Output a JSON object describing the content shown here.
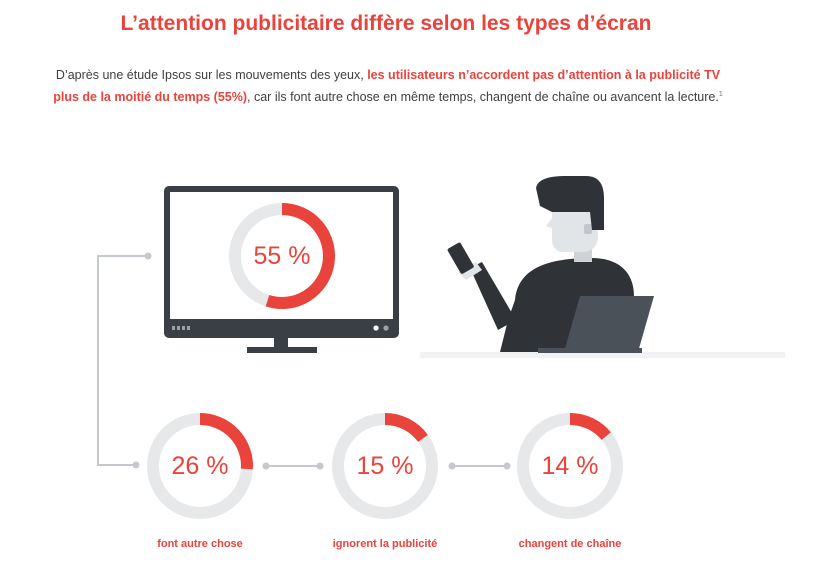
{
  "title": "L’attention publicitaire diffère selon les types d’écran",
  "intro": {
    "part1": "D’après une étude Ipsos sur les mouvements des yeux, ",
    "highlight": "les utilisateurs n’accordent pas d’attention à la publicité TV plus de la moitié du temps (55%)",
    "part2": ", car ils font autre chose en même temps, changent de chaîne ou avancent la lecture.",
    "footnote": "1"
  },
  "colors": {
    "accent": "#e9433b",
    "ring_track": "#e6e8ea",
    "dark": "#2f3338",
    "slate": "#4b5158"
  },
  "main_stat": {
    "label": "55 %",
    "fraction": 0.55
  },
  "stats": [
    {
      "label": "26 %",
      "fraction": 0.26,
      "caption": "font autre chose"
    },
    {
      "label": "15 %",
      "fraction": 0.15,
      "caption": "ignorent la publicité"
    },
    {
      "label": "14 %",
      "fraction": 0.14,
      "caption": "changent de chaîne"
    }
  ],
  "icons": [
    "tv-icon",
    "person-icon",
    "smartphone-icon",
    "laptop-icon"
  ]
}
